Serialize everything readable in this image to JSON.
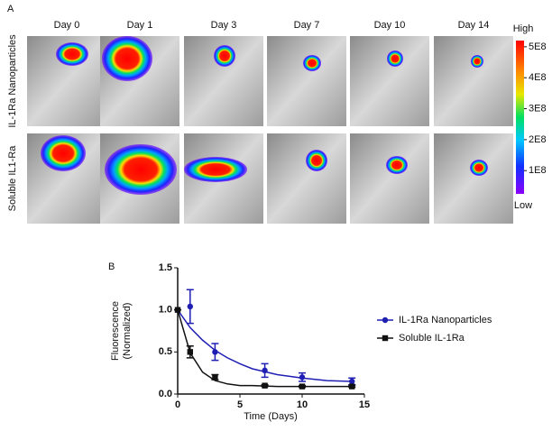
{
  "panel_a": {
    "label": "A",
    "days": [
      "Day 0",
      "Day 1",
      "Day 3",
      "Day 7",
      "Day 10",
      "Day 14"
    ],
    "rows": [
      "IL-1Ra Nanoparticles",
      "Soluble IL1-Ra"
    ],
    "colorbar": {
      "high": "High",
      "low": "Low",
      "lim": [
        25000000,
        520000000
      ],
      "ticks": [
        {
          "value": 500000000,
          "label": "5E8"
        },
        {
          "value": 400000000,
          "label": "4E8"
        },
        {
          "value": 300000000,
          "label": "3E8"
        },
        {
          "value": 200000000,
          "label": "2E8"
        },
        {
          "value": 100000000,
          "label": "1E8"
        }
      ]
    }
  },
  "chart_data": {
    "type": "line",
    "label": "B",
    "xlabel": "Time (Days)",
    "ylabel": [
      "Fluorescence",
      "(Normalized)"
    ],
    "xlim": [
      0,
      15
    ],
    "xticks": [
      0,
      5,
      10,
      15
    ],
    "ylim": [
      0,
      1.5
    ],
    "yticks": [
      {
        "value": 0,
        "label": "0.0"
      },
      0.5,
      {
        "value": 1,
        "label": "1.0"
      },
      1.5
    ],
    "x": [
      0,
      1,
      3,
      7,
      10,
      14
    ],
    "fit_x": [
      0,
      1,
      2,
      3,
      4,
      5,
      6,
      8,
      10,
      12,
      14
    ],
    "series": [
      {
        "name": "IL-1Ra Nanoparticles",
        "color": "#1f1fb4",
        "marker": "circle",
        "values": [
          1.0,
          1.04,
          0.5,
          0.28,
          0.2,
          0.15
        ],
        "errors": [
          0,
          0.2,
          0.1,
          0.08,
          0.05,
          0.04
        ],
        "fit_values": [
          1.0,
          0.79,
          0.64,
          0.52,
          0.43,
          0.36,
          0.3,
          0.23,
          0.19,
          0.16,
          0.15
        ]
      },
      {
        "name": "Soluble IL-1Ra",
        "color": "#111111",
        "marker": "square",
        "values": [
          1.0,
          0.5,
          0.2,
          0.1,
          0.09,
          0.09
        ],
        "errors": [
          0,
          0.07,
          0.03,
          0.01,
          0.01,
          0.01
        ],
        "fit_values": [
          1.0,
          0.49,
          0.26,
          0.16,
          0.12,
          0.1,
          0.1,
          0.09,
          0.09,
          0.09,
          0.09
        ]
      }
    ]
  }
}
